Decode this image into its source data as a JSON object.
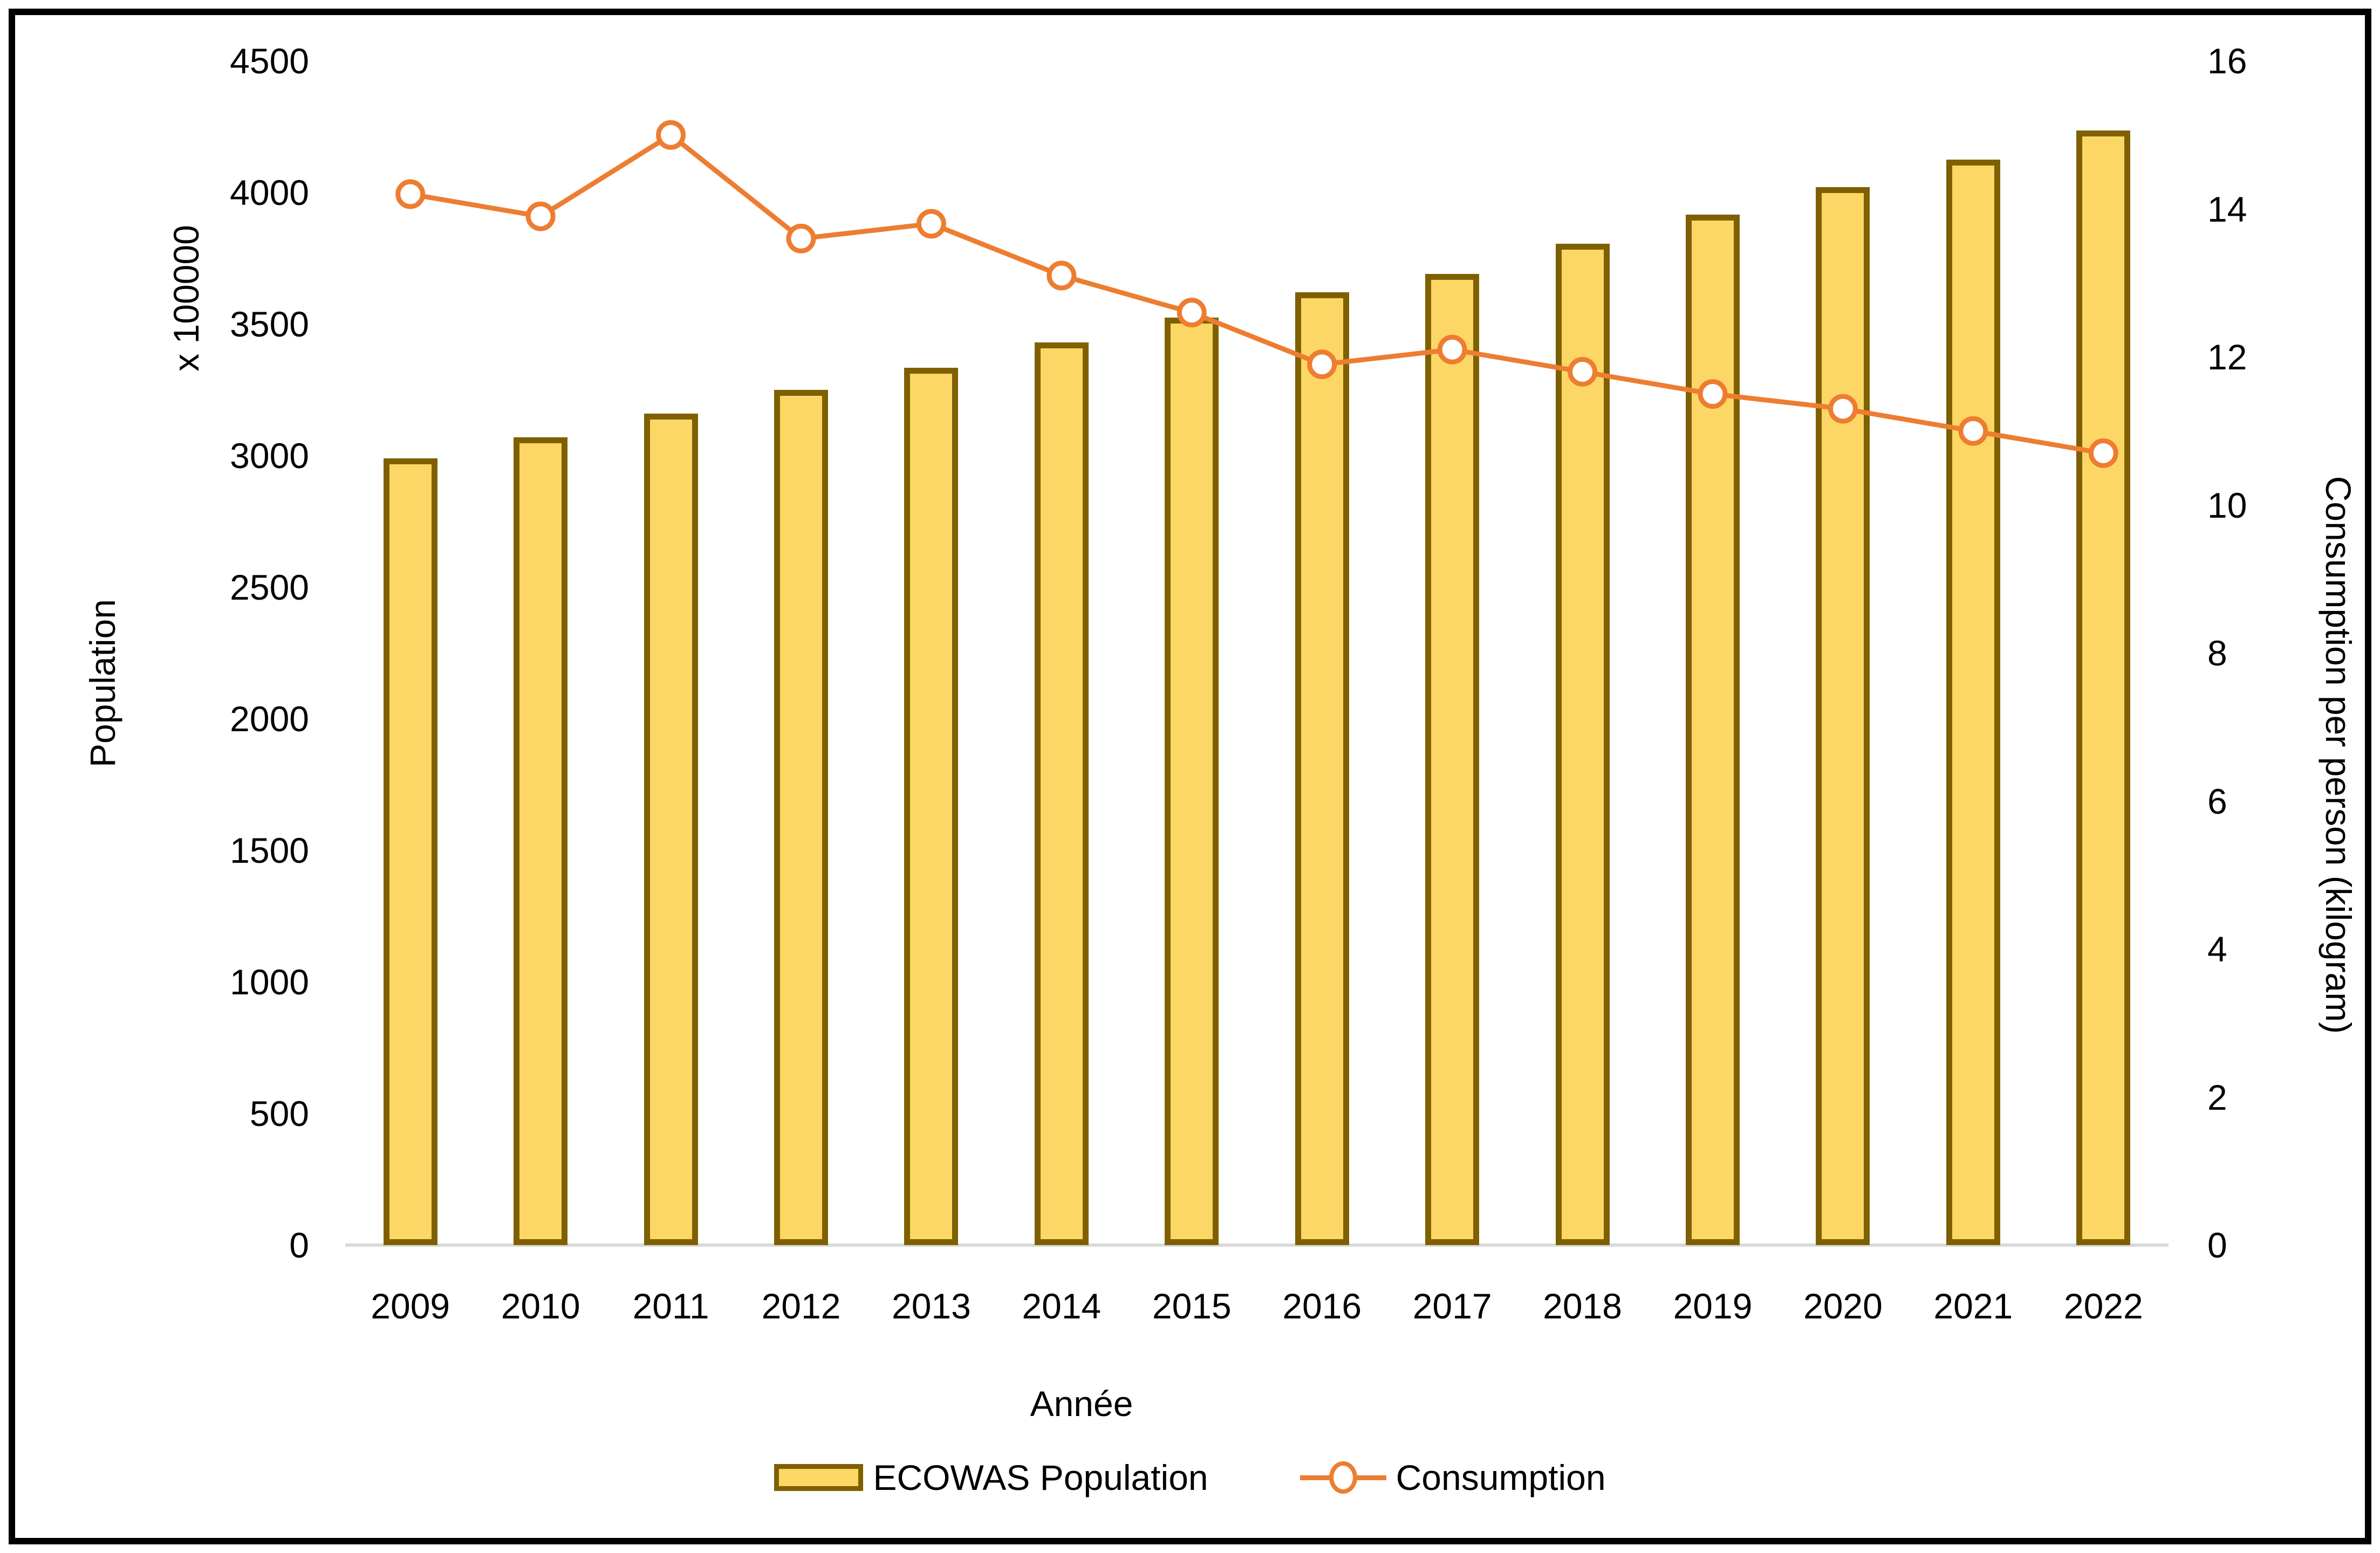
{
  "chart_data": {
    "type": "bar+line",
    "categories": [
      "2009",
      "2010",
      "2011",
      "2012",
      "2013",
      "2014",
      "2015",
      "2016",
      "2017",
      "2018",
      "2019",
      "2020",
      "2021",
      "2022"
    ],
    "series": [
      {
        "name": "ECOWAS Population",
        "type": "bar",
        "axis": "left",
        "values": [
          2990,
          3070,
          3160,
          3250,
          3335,
          3430,
          3525,
          3620,
          3690,
          3805,
          3915,
          4020,
          4125,
          4235
        ]
      },
      {
        "name": "Consumption",
        "type": "line",
        "axis": "right",
        "values": [
          14.2,
          13.9,
          15.0,
          13.6,
          13.8,
          13.1,
          12.6,
          11.9,
          12.1,
          11.8,
          11.5,
          11.3,
          11.0,
          10.7
        ]
      }
    ],
    "left_axis": {
      "title": "Population",
      "unit_label": "x 100000",
      "min": 0,
      "max": 4500,
      "step": 500
    },
    "right_axis": {
      "title": "Consumption per person (kilogram)",
      "min": 0,
      "max": 16,
      "step": 2
    },
    "x_axis": {
      "title": "Année"
    },
    "legend_position": "bottom",
    "grid": "off"
  },
  "colors": {
    "bar_fill": "#FDD766",
    "bar_border": "#7F6000",
    "line": "#ED7D31",
    "marker_fill": "#FFFFFF",
    "axis_line": "#D9D9D9",
    "text": "#000000",
    "frame": "#000000"
  }
}
